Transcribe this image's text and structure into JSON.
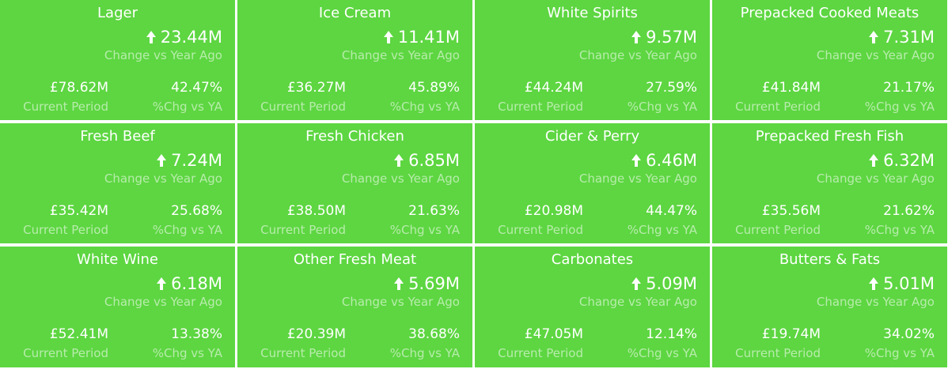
{
  "colors": {
    "tile_background": "#5dd641",
    "primary_text": "#ffffff",
    "secondary_text": "#b7ecab"
  },
  "labels": {
    "change_label": "Change vs Year Ago",
    "current_label": "Current Period",
    "pct_label": "%Chg vs YA",
    "arrow_icon": "arrow-up-icon"
  },
  "cards": [
    {
      "title": "Lager",
      "change": "23.44M",
      "current": "£78.62M",
      "pct": "42.47%"
    },
    {
      "title": "Ice Cream",
      "change": "11.41M",
      "current": "£36.27M",
      "pct": "45.89%"
    },
    {
      "title": "White Spirits",
      "change": "9.57M",
      "current": "£44.24M",
      "pct": "27.59%"
    },
    {
      "title": "Prepacked Cooked Meats",
      "change": "7.31M",
      "current": "£41.84M",
      "pct": "21.17%"
    },
    {
      "title": "Fresh Beef",
      "change": "7.24M",
      "current": "£35.42M",
      "pct": "25.68%"
    },
    {
      "title": "Fresh Chicken",
      "change": "6.85M",
      "current": "£38.50M",
      "pct": "21.63%"
    },
    {
      "title": "Cider & Perry",
      "change": "6.46M",
      "current": "£20.98M",
      "pct": "44.47%"
    },
    {
      "title": "Prepacked Fresh Fish",
      "change": "6.32M",
      "current": "£35.56M",
      "pct": "21.62%"
    },
    {
      "title": "White Wine",
      "change": "6.18M",
      "current": "£52.41M",
      "pct": "13.38%"
    },
    {
      "title": "Other Fresh Meat",
      "change": "5.69M",
      "current": "£20.39M",
      "pct": "38.68%"
    },
    {
      "title": "Carbonates",
      "change": "5.09M",
      "current": "£47.05M",
      "pct": "12.14%"
    },
    {
      "title": "Butters & Fats",
      "change": "5.01M",
      "current": "£19.74M",
      "pct": "34.02%"
    }
  ]
}
